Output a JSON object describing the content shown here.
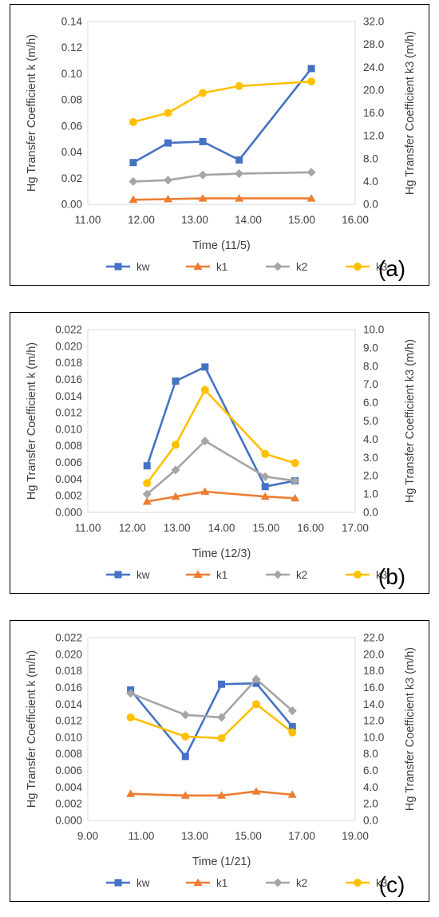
{
  "chart_data": [
    {
      "type": "line",
      "panel_label": "(a)",
      "xlabel": "Time (11/5)",
      "ylabel_left": "Hg Transfer Coefficient k (m/h)",
      "ylabel_right": "Hg Transfer Coefficient k3 (m/h)",
      "xlim": [
        11.0,
        16.0
      ],
      "xticks": [
        "11.00",
        "12.00",
        "13.00",
        "14.00",
        "15.00",
        "16.00"
      ],
      "ylim_left": [
        0,
        0.14
      ],
      "yticks_left": [
        "0.00",
        "0.02",
        "0.04",
        "0.06",
        "0.08",
        "0.10",
        "0.12",
        "0.14"
      ],
      "ylim_right": [
        0,
        32.0
      ],
      "yticks_right": [
        "0.0",
        "4.0",
        "8.0",
        "12.0",
        "16.0",
        "20.0",
        "24.0",
        "28.0",
        "32.0"
      ],
      "grid": false,
      "legend": "bottom",
      "series": [
        {
          "name": "kw",
          "axis": "left",
          "x": [
            11.85,
            12.5,
            13.15,
            13.83,
            15.18
          ],
          "y": [
            0.032,
            0.047,
            0.048,
            0.034,
            0.104
          ]
        },
        {
          "name": "k1",
          "axis": "left",
          "x": [
            11.85,
            12.5,
            13.15,
            13.83,
            15.18
          ],
          "y": [
            0.0035,
            0.004,
            0.0045,
            0.0045,
            0.0045
          ]
        },
        {
          "name": "k2",
          "axis": "left",
          "x": [
            11.85,
            12.5,
            13.15,
            13.83,
            15.18
          ],
          "y": [
            0.0175,
            0.0185,
            0.0225,
            0.0235,
            0.0245
          ]
        },
        {
          "name": "k3",
          "axis": "right",
          "x": [
            11.85,
            12.5,
            13.15,
            13.83,
            15.18
          ],
          "y": [
            14.4,
            16.0,
            19.5,
            20.7,
            21.5
          ]
        }
      ]
    },
    {
      "type": "line",
      "panel_label": "(b)",
      "xlabel": "Time (12/3)",
      "ylabel_left": "Hg Transfer Coefficient k (m/h)",
      "ylabel_right": "Hg Transfer Coefficient k3 (m/h)",
      "xlim": [
        11.0,
        17.0
      ],
      "xticks": [
        "11.00",
        "12.00",
        "13.00",
        "14.00",
        "15.00",
        "16.00",
        "17.00"
      ],
      "ylim_left": [
        0,
        0.022
      ],
      "yticks_left": [
        "0.000",
        "0.002",
        "0.004",
        "0.006",
        "0.008",
        "0.010",
        "0.012",
        "0.014",
        "0.016",
        "0.018",
        "0.020",
        "0.022"
      ],
      "ylim_right": [
        0,
        10.0
      ],
      "yticks_right": [
        "0.0",
        "1.0",
        "2.0",
        "3.0",
        "4.0",
        "5.0",
        "6.0",
        "7.0",
        "8.0",
        "9.0",
        "10.0"
      ],
      "grid": false,
      "legend": "bottom",
      "series": [
        {
          "name": "kw",
          "axis": "left",
          "x": [
            12.33,
            12.97,
            13.63,
            14.98,
            15.65
          ],
          "y": [
            0.0056,
            0.0158,
            0.0175,
            0.0031,
            0.0038
          ]
        },
        {
          "name": "k1",
          "axis": "left",
          "x": [
            12.33,
            12.97,
            13.63,
            14.98,
            15.65
          ],
          "y": [
            0.0013,
            0.0019,
            0.0025,
            0.0019,
            0.0017
          ]
        },
        {
          "name": "k2",
          "axis": "left",
          "x": [
            12.33,
            12.97,
            13.63,
            14.98,
            15.65
          ],
          "y": [
            0.0022,
            0.0051,
            0.0086,
            0.0043,
            0.0038
          ]
        },
        {
          "name": "k3",
          "axis": "right",
          "x": [
            12.33,
            12.97,
            13.63,
            14.98,
            15.65
          ],
          "y": [
            1.6,
            3.7,
            6.7,
            3.2,
            2.7
          ]
        }
      ]
    },
    {
      "type": "line",
      "panel_label": "(c)",
      "xlabel": "Time (1/21)",
      "ylabel_left": "Hg Transfer Coefficient k (m/h)",
      "ylabel_right": "Hg Transfer Coefficient k3 (m/h)",
      "xlim": [
        9.0,
        19.0
      ],
      "xticks": [
        "9.00",
        "11.00",
        "13.00",
        "15.00",
        "17.00",
        "19.00"
      ],
      "ylim_left": [
        0,
        0.022
      ],
      "yticks_left": [
        "0.000",
        "0.002",
        "0.004",
        "0.006",
        "0.008",
        "0.010",
        "0.012",
        "0.014",
        "0.016",
        "0.018",
        "0.020",
        "0.022"
      ],
      "ylim_right": [
        0,
        22.0
      ],
      "yticks_right": [
        "0.0",
        "2.0",
        "4.0",
        "6.0",
        "8.0",
        "10.0",
        "12.0",
        "14.0",
        "16.0",
        "18.0",
        "20.0",
        "22.0"
      ],
      "grid": false,
      "legend": "bottom",
      "series": [
        {
          "name": "kw",
          "axis": "left",
          "x": [
            10.6,
            12.65,
            14.0,
            15.3,
            16.65
          ],
          "y": [
            0.0157,
            0.0077,
            0.0164,
            0.0165,
            0.0113
          ]
        },
        {
          "name": "k1",
          "axis": "left",
          "x": [
            10.6,
            12.65,
            14.0,
            15.3,
            16.65
          ],
          "y": [
            0.0032,
            0.003,
            0.003,
            0.0035,
            0.0031
          ]
        },
        {
          "name": "k2",
          "axis": "left",
          "x": [
            10.6,
            12.65,
            14.0,
            15.3,
            16.65
          ],
          "y": [
            0.0153,
            0.0127,
            0.0124,
            0.017,
            0.0132
          ]
        },
        {
          "name": "k3",
          "axis": "right",
          "x": [
            10.6,
            12.65,
            14.0,
            15.3,
            16.65
          ],
          "y": [
            12.4,
            10.1,
            9.9,
            14.0,
            10.6
          ]
        }
      ]
    }
  ],
  "series_style": {
    "kw": {
      "color": "#4472C4",
      "marker": "square"
    },
    "k1": {
      "color": "#ED7D31",
      "marker": "triangle"
    },
    "k2": {
      "color": "#A5A5A5",
      "marker": "diamond"
    },
    "k3": {
      "color": "#FFC000",
      "marker": "circle"
    }
  }
}
